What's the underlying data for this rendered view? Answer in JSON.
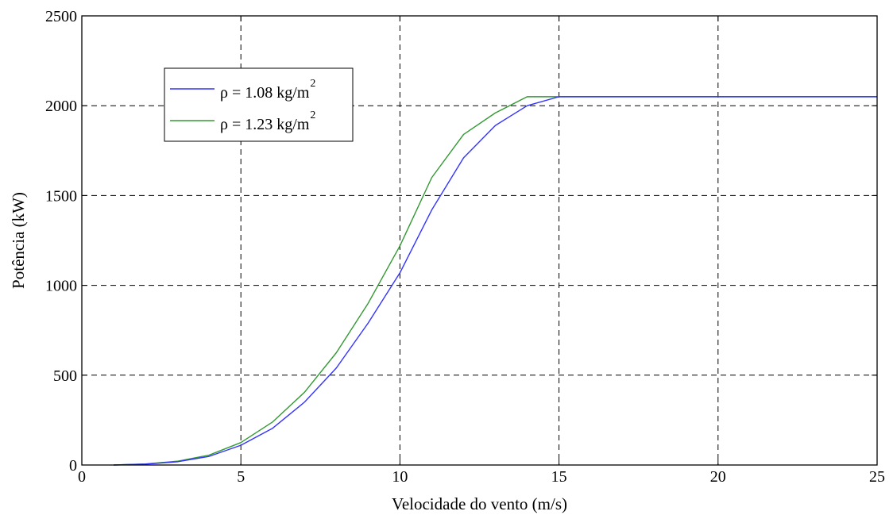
{
  "chart_data": {
    "type": "line",
    "title": "",
    "xlabel": "Velocidade do vento (m/s)",
    "ylabel": "Potência (kW)",
    "xlim": [
      0,
      25
    ],
    "ylim": [
      0,
      2500
    ],
    "xticks": [
      0,
      5,
      10,
      15,
      20,
      25
    ],
    "yticks": [
      0,
      500,
      1000,
      1500,
      2000,
      2500
    ],
    "grid": true,
    "legend_position": "top-left",
    "x": [
      1,
      2,
      3,
      4,
      5,
      6,
      7,
      8,
      9,
      10,
      11,
      12,
      13,
      14,
      15,
      16,
      17,
      18,
      19,
      20,
      21,
      22,
      23,
      24,
      25
    ],
    "series": [
      {
        "name": "ρ = 1.08 kg/m",
        "name_sup": "2",
        "color": "#3333ff",
        "values": [
          0,
          5,
          18,
          48,
          110,
          205,
          350,
          540,
          790,
          1070,
          1420,
          1710,
          1890,
          2000,
          2050,
          2050,
          2050,
          2050,
          2050,
          2050,
          2050,
          2050,
          2050,
          2050,
          2050
        ]
      },
      {
        "name": "ρ = 1.23 kg/m",
        "name_sup": "2",
        "color": "#339933",
        "values": [
          0,
          6,
          21,
          55,
          125,
          240,
          405,
          625,
          900,
          1220,
          1600,
          1840,
          1960,
          2050,
          2050,
          2050,
          2050,
          2050,
          2050,
          2050,
          2050,
          2050,
          2050,
          2050,
          2050
        ]
      }
    ]
  }
}
